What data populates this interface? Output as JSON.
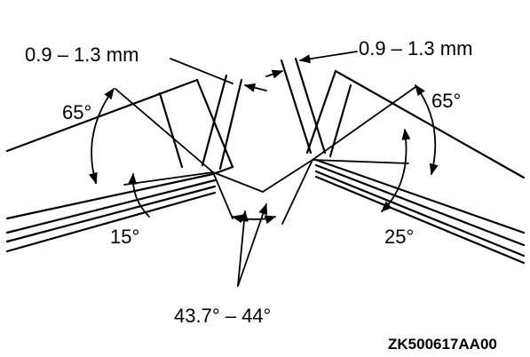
{
  "labels": {
    "gap_left": "0.9 – 1.3 mm",
    "gap_right": "0.9 – 1.3 mm",
    "angle_left_65": "65°",
    "angle_right_65": "65°",
    "angle_left_15": "15°",
    "angle_right_25": "25°",
    "angle_center": "43.7° – 44°"
  },
  "figure_code": "ZK500617AA00",
  "colors": {
    "line": "#000000",
    "background": "#ffffff"
  }
}
